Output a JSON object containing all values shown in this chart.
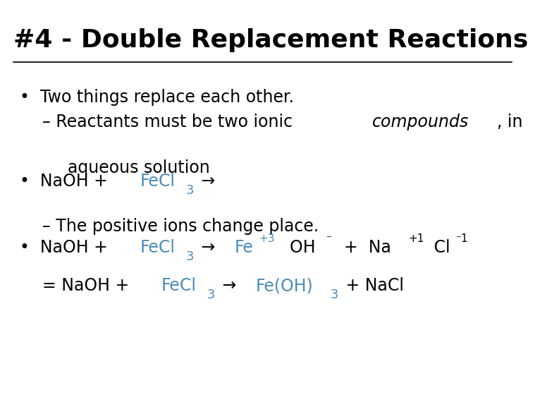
{
  "title": "#4 - Double Replacement Reactions",
  "background_color": "#ffffff",
  "blue_color": "#4a8db5",
  "black_color": "#000000",
  "title_fontsize": 26,
  "main_fontsize": 17,
  "sub_fontsize": 13,
  "super_fontsize": 11
}
